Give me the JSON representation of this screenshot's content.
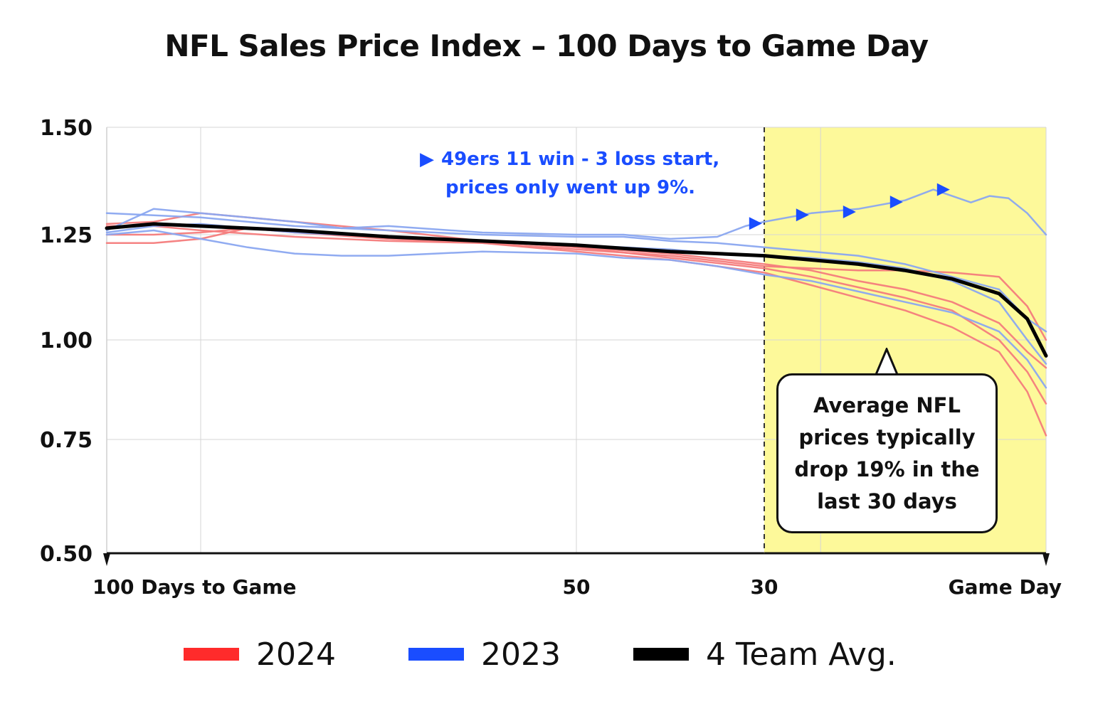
{
  "chart_data": {
    "type": "line",
    "title": "NFL Sales Price Index – 100 Days to Game Day",
    "xlabel": "",
    "ylabel": "",
    "x_range": [
      100,
      0
    ],
    "ylim": [
      0.5,
      1.5
    ],
    "y_ticks": [
      "1.50",
      "1.25",
      "1.00",
      "0.75",
      "0.50"
    ],
    "y_tick_values": [
      1.5,
      1.25,
      1.0,
      0.75,
      0.5
    ],
    "x_ticks": [
      "100 Days to Game",
      "50",
      "30",
      "Game Day"
    ],
    "x_tick_values": [
      100,
      50,
      30,
      0
    ],
    "highlight_region": {
      "from": 30,
      "to": 0,
      "color": "#fdf99a"
    },
    "grid": true,
    "legend_position": "bottom",
    "legend": [
      {
        "label": "2024",
        "color": "#ff2b2b"
      },
      {
        "label": "2023",
        "color": "#1a4dff"
      },
      {
        "label": "4 Team Avg.",
        "color": "#000000"
      }
    ],
    "series": [
      {
        "group": "2024",
        "color": "#f47c7c",
        "points": [
          [
            100,
            1.27
          ],
          [
            95,
            1.27
          ],
          [
            90,
            1.26
          ],
          [
            80,
            1.245
          ],
          [
            70,
            1.235
          ],
          [
            60,
            1.23
          ],
          [
            50,
            1.215
          ],
          [
            40,
            1.2
          ],
          [
            30,
            1.175
          ],
          [
            25,
            1.17
          ],
          [
            20,
            1.165
          ],
          [
            15,
            1.165
          ],
          [
            10,
            1.16
          ],
          [
            5,
            1.15
          ],
          [
            2,
            1.08
          ],
          [
            0,
            1.0
          ]
        ]
      },
      {
        "group": "2024",
        "color": "#f47c7c",
        "points": [
          [
            100,
            1.23
          ],
          [
            95,
            1.23
          ],
          [
            90,
            1.24
          ],
          [
            85,
            1.265
          ],
          [
            80,
            1.26
          ],
          [
            70,
            1.245
          ],
          [
            60,
            1.235
          ],
          [
            50,
            1.22
          ],
          [
            40,
            1.195
          ],
          [
            30,
            1.17
          ],
          [
            25,
            1.15
          ],
          [
            20,
            1.125
          ],
          [
            15,
            1.1
          ],
          [
            10,
            1.07
          ],
          [
            5,
            1.0
          ],
          [
            2,
            0.92
          ],
          [
            0,
            0.84
          ]
        ]
      },
      {
        "group": "2024",
        "color": "#f47c7c",
        "points": [
          [
            100,
            1.25
          ],
          [
            95,
            1.25
          ],
          [
            90,
            1.255
          ],
          [
            85,
            1.265
          ],
          [
            80,
            1.255
          ],
          [
            70,
            1.24
          ],
          [
            60,
            1.23
          ],
          [
            50,
            1.21
          ],
          [
            40,
            1.19
          ],
          [
            30,
            1.16
          ],
          [
            25,
            1.13
          ],
          [
            20,
            1.1
          ],
          [
            15,
            1.07
          ],
          [
            10,
            1.03
          ],
          [
            5,
            0.97
          ],
          [
            2,
            0.87
          ],
          [
            0,
            0.76
          ]
        ]
      },
      {
        "group": "2024",
        "color": "#f47c7c",
        "points": [
          [
            100,
            1.275
          ],
          [
            95,
            1.28
          ],
          [
            90,
            1.3
          ],
          [
            85,
            1.29
          ],
          [
            80,
            1.28
          ],
          [
            70,
            1.26
          ],
          [
            60,
            1.235
          ],
          [
            50,
            1.22
          ],
          [
            40,
            1.205
          ],
          [
            30,
            1.18
          ],
          [
            25,
            1.165
          ],
          [
            20,
            1.14
          ],
          [
            15,
            1.12
          ],
          [
            10,
            1.09
          ],
          [
            5,
            1.04
          ],
          [
            2,
            0.97
          ],
          [
            0,
            0.93
          ]
        ]
      },
      {
        "group": "2023",
        "color": "#8aa6f0",
        "points": [
          [
            100,
            1.26
          ],
          [
            95,
            1.31
          ],
          [
            90,
            1.3
          ],
          [
            85,
            1.29
          ],
          [
            80,
            1.28
          ],
          [
            75,
            1.265
          ],
          [
            70,
            1.27
          ],
          [
            60,
            1.255
          ],
          [
            50,
            1.25
          ],
          [
            45,
            1.25
          ],
          [
            40,
            1.24
          ],
          [
            35,
            1.245
          ],
          [
            32,
            1.27
          ],
          [
            30,
            1.28
          ],
          [
            25,
            1.3
          ],
          [
            20,
            1.31
          ],
          [
            15,
            1.33
          ],
          [
            12,
            1.355
          ],
          [
            10,
            1.34
          ],
          [
            8,
            1.325
          ],
          [
            6,
            1.34
          ],
          [
            4,
            1.335
          ],
          [
            2,
            1.3
          ],
          [
            0,
            1.25
          ]
        ]
      },
      {
        "group": "2023",
        "color": "#8aa6f0",
        "points": [
          [
            100,
            1.3
          ],
          [
            95,
            1.295
          ],
          [
            90,
            1.29
          ],
          [
            80,
            1.27
          ],
          [
            70,
            1.26
          ],
          [
            60,
            1.25
          ],
          [
            50,
            1.245
          ],
          [
            45,
            1.245
          ],
          [
            40,
            1.235
          ],
          [
            35,
            1.23
          ],
          [
            30,
            1.22
          ],
          [
            25,
            1.21
          ],
          [
            20,
            1.2
          ],
          [
            15,
            1.18
          ],
          [
            10,
            1.15
          ],
          [
            5,
            1.12
          ],
          [
            2,
            1.05
          ],
          [
            0,
            1.02
          ]
        ]
      },
      {
        "group": "2023",
        "color": "#8aa6f0",
        "points": [
          [
            100,
            1.25
          ],
          [
            95,
            1.26
          ],
          [
            90,
            1.24
          ],
          [
            85,
            1.22
          ],
          [
            80,
            1.205
          ],
          [
            75,
            1.2
          ],
          [
            70,
            1.2
          ],
          [
            65,
            1.205
          ],
          [
            60,
            1.21
          ],
          [
            50,
            1.205
          ],
          [
            45,
            1.195
          ],
          [
            40,
            1.19
          ],
          [
            35,
            1.175
          ],
          [
            30,
            1.155
          ],
          [
            25,
            1.14
          ],
          [
            20,
            1.115
          ],
          [
            15,
            1.09
          ],
          [
            10,
            1.065
          ],
          [
            5,
            1.02
          ],
          [
            2,
            0.95
          ],
          [
            0,
            0.88
          ]
        ]
      },
      {
        "group": "2023",
        "color": "#8aa6f0",
        "points": [
          [
            100,
            1.255
          ],
          [
            95,
            1.27
          ],
          [
            90,
            1.275
          ],
          [
            85,
            1.265
          ],
          [
            80,
            1.255
          ],
          [
            70,
            1.245
          ],
          [
            60,
            1.235
          ],
          [
            50,
            1.225
          ],
          [
            40,
            1.215
          ],
          [
            35,
            1.205
          ],
          [
            30,
            1.2
          ],
          [
            25,
            1.195
          ],
          [
            20,
            1.185
          ],
          [
            15,
            1.17
          ],
          [
            10,
            1.14
          ],
          [
            5,
            1.09
          ],
          [
            2,
            1.0
          ],
          [
            0,
            0.94
          ]
        ]
      },
      {
        "group": "4 Team Avg.",
        "color": "#000000",
        "points": [
          [
            100,
            1.265
          ],
          [
            95,
            1.275
          ],
          [
            90,
            1.27
          ],
          [
            80,
            1.26
          ],
          [
            70,
            1.245
          ],
          [
            60,
            1.235
          ],
          [
            50,
            1.225
          ],
          [
            40,
            1.21
          ],
          [
            30,
            1.2
          ],
          [
            25,
            1.19
          ],
          [
            20,
            1.18
          ],
          [
            15,
            1.165
          ],
          [
            10,
            1.145
          ],
          [
            5,
            1.11
          ],
          [
            2,
            1.05
          ],
          [
            0,
            0.96
          ]
        ]
      }
    ],
    "markers_2023_49ers": [
      [
        31,
        1.276
      ],
      [
        26,
        1.296
      ],
      [
        21,
        1.303
      ],
      [
        16,
        1.326
      ],
      [
        11,
        1.355
      ]
    ],
    "annotations": {
      "blue_line1": "49ers 11 win - 3 loss start,",
      "blue_line2": "prices only went up 9%.",
      "callout": "Average NFL prices typically drop 19% in the last 30 days"
    }
  }
}
